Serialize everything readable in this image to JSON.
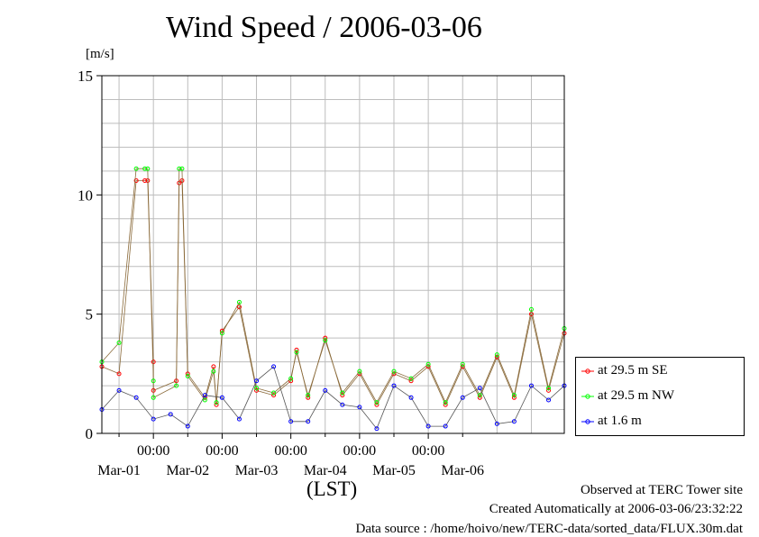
{
  "chart_data": {
    "type": "line",
    "title": "Wind Speed / 2006-03-06",
    "ylabel": "[m/s]",
    "xlabel": "(LST)",
    "ylim": [
      0,
      15
    ],
    "yticks": [
      "0",
      "5",
      "10",
      "15"
    ],
    "xlim": [
      "2006-02-28 06:00",
      "2006-03-06 23:30"
    ],
    "time_ticks": [
      "00:00",
      "00:00",
      "00:00",
      "00:00",
      "00:00"
    ],
    "date_labels": [
      "Mar-01",
      "Mar-02",
      "Mar-03",
      "Mar-04",
      "Mar-05",
      "Mar-06"
    ],
    "grid": true,
    "legend_position": "bottom-right, outside plot",
    "series": [
      {
        "name": "at 29.5 m SE",
        "color": "#ff0000",
        "x": [
          "2006-02-28 06:00",
          "2006-02-28 12:00",
          "2006-02-28 18:00",
          "2006-02-28 21:00",
          "2006-02-28 22:00",
          "2006-02-29 00:00",
          "2006-03-01 00:00",
          "2006-03-01 08:00",
          "2006-03-01 09:00",
          "2006-03-01 10:00",
          "2006-03-01 12:00",
          "2006-03-01 18:00",
          "2006-03-01 21:00",
          "2006-03-01 22:00",
          "2006-03-02 00:00",
          "2006-03-02 06:00",
          "2006-03-02 12:00",
          "2006-03-02 18:00",
          "2006-03-03 00:00",
          "2006-03-03 02:00",
          "2006-03-03 06:00",
          "2006-03-03 12:00",
          "2006-03-03 18:00",
          "2006-03-04 00:00",
          "2006-03-04 06:00",
          "2006-03-04 12:00",
          "2006-03-04 18:00",
          "2006-03-05 00:00",
          "2006-03-05 06:00",
          "2006-03-05 12:00",
          "2006-03-05 18:00",
          "2006-03-06 00:00",
          "2006-03-06 06:00",
          "2006-03-06 12:00",
          "2006-03-06 18:00",
          "2006-03-06 23:30"
        ],
        "values": [
          2.8,
          2.5,
          10.6,
          10.6,
          10.6,
          3.0,
          1.8,
          2.2,
          10.5,
          10.6,
          2.5,
          1.5,
          2.8,
          1.2,
          4.3,
          5.3,
          1.8,
          1.6,
          2.2,
          3.5,
          1.5,
          4.0,
          1.6,
          2.5,
          1.2,
          2.5,
          2.2,
          2.8,
          1.2,
          2.8,
          1.5,
          3.2,
          1.5,
          5.0,
          1.8,
          4.2
        ]
      },
      {
        "name": "at 29.5 m NW",
        "color": "#00ff00",
        "x": [
          "2006-02-28 06:00",
          "2006-02-28 12:00",
          "2006-02-28 18:00",
          "2006-02-28 21:00",
          "2006-02-28 22:00",
          "2006-02-29 00:00",
          "2006-03-01 00:00",
          "2006-03-01 08:00",
          "2006-03-01 09:00",
          "2006-03-01 10:00",
          "2006-03-01 12:00",
          "2006-03-01 18:00",
          "2006-03-01 21:00",
          "2006-03-01 22:00",
          "2006-03-02 00:00",
          "2006-03-02 06:00",
          "2006-03-02 12:00",
          "2006-03-02 18:00",
          "2006-03-03 00:00",
          "2006-03-03 02:00",
          "2006-03-03 06:00",
          "2006-03-03 12:00",
          "2006-03-03 18:00",
          "2006-03-04 00:00",
          "2006-03-04 06:00",
          "2006-03-04 12:00",
          "2006-03-04 18:00",
          "2006-03-05 00:00",
          "2006-03-05 06:00",
          "2006-03-05 12:00",
          "2006-03-05 18:00",
          "2006-03-06 00:00",
          "2006-03-06 06:00",
          "2006-03-06 12:00",
          "2006-03-06 18:00",
          "2006-03-06 23:30"
        ],
        "values": [
          3.0,
          3.8,
          11.1,
          11.1,
          11.1,
          2.2,
          1.5,
          2.0,
          11.1,
          11.1,
          2.4,
          1.4,
          2.6,
          1.3,
          4.2,
          5.5,
          1.9,
          1.7,
          2.3,
          3.4,
          1.6,
          3.9,
          1.7,
          2.6,
          1.3,
          2.6,
          2.3,
          2.9,
          1.3,
          2.9,
          1.6,
          3.3,
          1.6,
          5.2,
          1.9,
          4.4
        ]
      },
      {
        "name": "at 1.6 m",
        "color": "#0000ff",
        "x": [
          "2006-02-28 06:00",
          "2006-02-28 12:00",
          "2006-02-28 18:00",
          "2006-03-01 00:00",
          "2006-03-01 06:00",
          "2006-03-01 12:00",
          "2006-03-01 18:00",
          "2006-03-02 00:00",
          "2006-03-02 06:00",
          "2006-03-02 12:00",
          "2006-03-02 18:00",
          "2006-03-03 00:00",
          "2006-03-03 06:00",
          "2006-03-03 12:00",
          "2006-03-03 18:00",
          "2006-03-04 00:00",
          "2006-03-04 06:00",
          "2006-03-04 12:00",
          "2006-03-04 18:00",
          "2006-03-05 00:00",
          "2006-03-05 06:00",
          "2006-03-05 12:00",
          "2006-03-05 18:00",
          "2006-03-06 00:00",
          "2006-03-06 06:00",
          "2006-03-06 12:00",
          "2006-03-06 18:00",
          "2006-03-06 23:30"
        ],
        "values": [
          1.0,
          1.8,
          1.5,
          0.6,
          0.8,
          0.3,
          1.6,
          1.5,
          0.6,
          2.2,
          2.8,
          0.5,
          0.5,
          1.8,
          1.2,
          1.1,
          0.2,
          2.0,
          1.5,
          0.3,
          0.3,
          1.5,
          1.9,
          0.4,
          0.5,
          2.0,
          1.4,
          2.0
        ]
      }
    ]
  },
  "footer": {
    "observed": "Observed at TERC Tower site",
    "created": "Created Automatically at 2006-03-06/23:32:22",
    "source": "Data source : /home/hoivo/new/TERC-data/sorted_data/FLUX.30m.dat"
  }
}
